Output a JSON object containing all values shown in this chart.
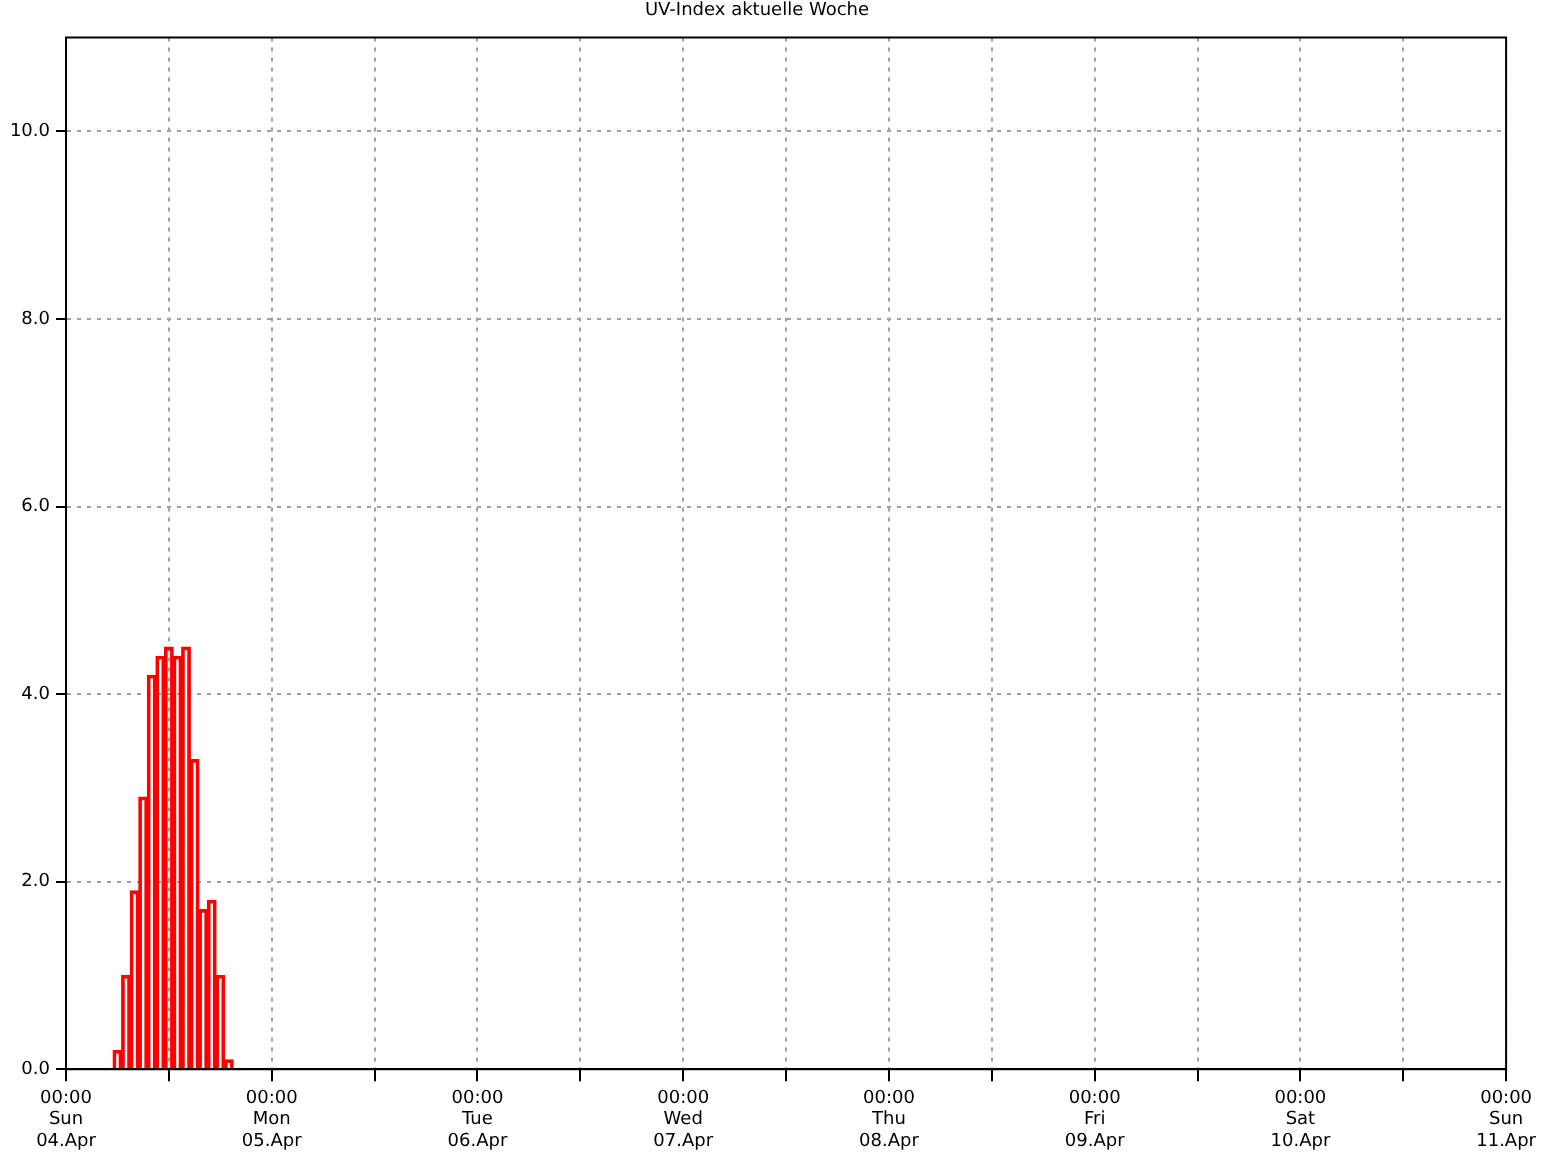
{
  "chart_data": {
    "type": "bar",
    "title": "UV-Index aktuelle Woche",
    "x": [
      "--04-04T06:00",
      "--04-04T07:00",
      "--04-04T08:00",
      "--04-04T09:00",
      "--04-04T10:00",
      "--04-04T11:00",
      "--04-04T12:00",
      "--04-04T13:00",
      "--04-04T14:00",
      "--04-04T15:00",
      "--04-04T16:00",
      "--04-04T17:00",
      "--04-04T18:00",
      "--04-04T19:00"
    ],
    "values": [
      0.2,
      1.0,
      1.9,
      2.9,
      4.2,
      4.4,
      4.5,
      4.4,
      4.5,
      3.3,
      1.7,
      1.8,
      1.0,
      0.1
    ],
    "color": "#ff0000",
    "xlim": [
      "--04-04T00:00",
      "--04-11T00:00"
    ],
    "xticks": [
      {
        "value": "--04-04T00:00",
        "label": "00:00\nSun\n04.Apr"
      },
      {
        "value": "--04-04T12:00",
        "label": null
      },
      {
        "value": "--04-05T00:00",
        "label": "00:00\nMon\n05.Apr"
      },
      {
        "value": "--04-05T12:00",
        "label": null
      },
      {
        "value": "--04-06T00:00",
        "label": "00:00\nTue\n06.Apr"
      },
      {
        "value": "--04-06T12:00",
        "label": null
      },
      {
        "value": "--04-07T00:00",
        "label": "00:00\nWed\n07.Apr"
      },
      {
        "value": "--04-07T12:00",
        "label": null
      },
      {
        "value": "--04-08T00:00",
        "label": "00:00\nThu\n08.Apr"
      },
      {
        "value": "--04-08T12:00",
        "label": null
      },
      {
        "value": "--04-09T00:00",
        "label": "00:00\nFri\n09.Apr"
      },
      {
        "value": "--04-09T12:00",
        "label": null
      },
      {
        "value": "--04-10T00:00",
        "label": "00:00\nSat\n10.Apr"
      },
      {
        "value": "--04-10T12:00",
        "label": null
      },
      {
        "value": "--04-11T00:00",
        "label": "00:00\nSun\n11.Apr"
      }
    ],
    "ylim": [
      0,
      11
    ],
    "yticks": [
      {
        "value": 0,
        "label": "0.0"
      },
      {
        "value": 2,
        "label": "2.0"
      },
      {
        "value": 4,
        "label": "4.0"
      },
      {
        "value": 6,
        "label": "6.0"
      },
      {
        "value": 8,
        "label": "8.0"
      },
      {
        "value": 10,
        "label": "10.0"
      }
    ],
    "grid": true
  }
}
